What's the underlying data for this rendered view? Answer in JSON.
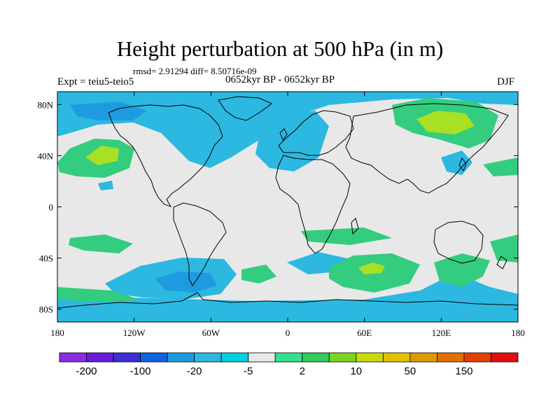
{
  "title": "Height perturbation at 500 hPa (in m)",
  "stats_text": "rmsd= 2.91294 diff= 8.50716e-09",
  "left_label": "Expt = teiu5-teio5",
  "center_label": "0652kyr BP - 0652kyr BP",
  "right_label": "DJF",
  "map": {
    "projection": "cylindrical equidistant",
    "lon_range": [
      -180,
      180
    ],
    "lat_range": [
      -90,
      90
    ],
    "background_color": "#e8e8e8",
    "x_ticks": [
      {
        "value": -180,
        "label": "180"
      },
      {
        "value": -120,
        "label": "120W"
      },
      {
        "value": -60,
        "label": "60W"
      },
      {
        "value": 0,
        "label": "0"
      },
      {
        "value": 60,
        "label": "60E"
      },
      {
        "value": 120,
        "label": "120E"
      },
      {
        "value": 180,
        "label": "180"
      }
    ],
    "y_ticks": [
      {
        "value": 80,
        "label": "80N"
      },
      {
        "value": 40,
        "label": "40N"
      },
      {
        "value": 0,
        "label": "0"
      },
      {
        "value": -40,
        "label": "40S"
      },
      {
        "value": -80,
        "label": "80S"
      }
    ],
    "field_regions": [
      {
        "name": "north-pacific-anomaly",
        "level": "10",
        "color": "#34cc7f",
        "lon": -148,
        "lat": 36,
        "rlon": 25,
        "rlat": 15
      },
      {
        "name": "north-pacific-core",
        "level": "20",
        "color": "#a8e024",
        "lon": -150,
        "lat": 38,
        "rlon": 10,
        "rlat": 6
      },
      {
        "name": "siberia-anomaly",
        "level": "10",
        "color": "#34cc7f",
        "lon": 110,
        "lat": 63,
        "rlon": 50,
        "rlat": 17
      },
      {
        "name": "siberia-core",
        "level": "20",
        "color": "#a8e024",
        "lon": 118,
        "lat": 66,
        "rlon": 24,
        "rlat": 8
      },
      {
        "name": "south-indian-anomaly",
        "level": "10",
        "color": "#34cc7f",
        "lon": 62,
        "lat": -50,
        "rlon": 27,
        "rlat": 12
      },
      {
        "name": "south-indian-core",
        "level": "20",
        "color": "#a8e024",
        "lon": 64,
        "lat": -50,
        "rlon": 8,
        "rlat": 3
      },
      {
        "name": "south-pacific-anomaly",
        "level": "-5",
        "color": "#1e9be0",
        "lon": -80,
        "lat": -55,
        "rlon": 25,
        "rlat": 9
      },
      {
        "name": "europe-anomaly",
        "level": "-5",
        "color": "#1e9be0",
        "lon": 5,
        "lat": 55,
        "rlon": 14,
        "rlat": 10
      }
    ]
  },
  "colorbar": {
    "colors": [
      "#8a2be2",
      "#6a1bd8",
      "#3a2ed8",
      "#1164e0",
      "#1e9be0",
      "#2cb8e0",
      "#00d0e0",
      "#e8e8e8",
      "#34e08a",
      "#34cc5a",
      "#7cd420",
      "#c8dc0c",
      "#e0c000",
      "#e09a00",
      "#e07000",
      "#e04000",
      "#e01010"
    ],
    "labels": [
      {
        "boundary": 1,
        "text": "-200"
      },
      {
        "boundary": 3,
        "text": "-100"
      },
      {
        "boundary": 5,
        "text": "-20"
      },
      {
        "boundary": 7,
        "text": "-5"
      },
      {
        "boundary": 9,
        "text": "2"
      },
      {
        "boundary": 11,
        "text": "10"
      },
      {
        "boundary": 13,
        "text": "50"
      },
      {
        "boundary": 15,
        "text": "150"
      }
    ]
  },
  "colors": {
    "positive_small": "#34cc7f",
    "positive_mid": "#a8e024",
    "negative_small": "#2cb8e0",
    "negative_mid": "#1e9be0"
  }
}
